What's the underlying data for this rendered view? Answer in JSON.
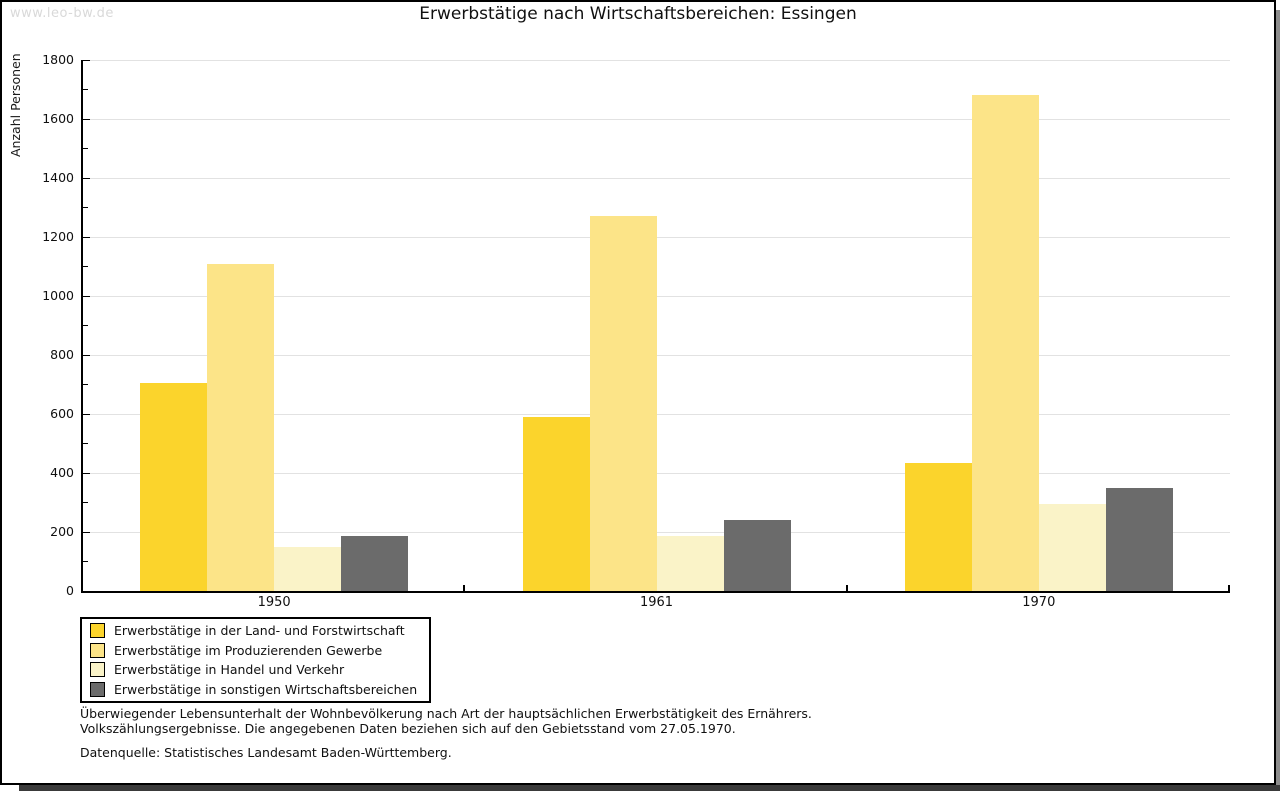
{
  "watermark": "www.leo-bw.de",
  "title": "Erwerbstätige nach Wirtschaftsbereichen: Essingen",
  "chart_data": {
    "type": "bar",
    "title": "Erwerbstätige nach Wirtschaftsbereichen: Essingen",
    "categories": [
      "1950",
      "1961",
      "1970"
    ],
    "series": [
      {
        "name": "Erwerbstätige in der Land- und Forstwirtschaft",
        "color": "#FBD42C",
        "values": [
          705,
          590,
          435
        ]
      },
      {
        "name": "Erwerbstätige im Produzierenden Gewerbe",
        "color": "#FCE488",
        "values": [
          1110,
          1270,
          1680
        ]
      },
      {
        "name": "Erwerbstätige in Handel und Verkehr",
        "color": "#FAF3C8",
        "values": [
          150,
          185,
          295
        ]
      },
      {
        "name": "Erwerbstätige in sonstigen Wirtschaftsbereichen",
        "color": "#6B6B6B",
        "values": [
          185,
          240,
          350
        ]
      }
    ],
    "xlabel": "",
    "ylabel": "Anzahl Personen",
    "ylim": [
      0,
      1800
    ],
    "ytick_step": 200,
    "minor_tick_step": 100,
    "grid": true,
    "legend_position": "bottom-left"
  },
  "footnotes": {
    "line1": "Überwiegender Lebensunterhalt der Wohnbevölkerung nach Art der hauptsächlichen Erwerbstätigkeit des Ernährers.",
    "line2": "Volkszählungsergebnisse. Die angegebenen Daten beziehen sich auf den Gebietsstand vom 27.05.1970.",
    "source": "Datenquelle: Statistisches Landesamt Baden-Württemberg."
  },
  "colors": {
    "gridline": "#E2E2E2",
    "axis": "#000000",
    "watermark": "#D9D9D9"
  }
}
